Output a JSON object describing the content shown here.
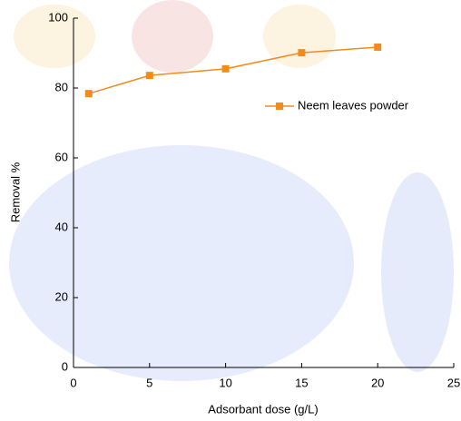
{
  "chart_data": {
    "type": "line",
    "x_label": "Adsorbant dose (g/L)",
    "y_label": "Removal %",
    "series": [
      {
        "name": "Neem leaves powder",
        "color": "#f28b1e",
        "x": [
          1,
          5,
          10,
          15,
          20
        ],
        "values": [
          78.4,
          83.6,
          85.5,
          90.1,
          91.7
        ]
      }
    ],
    "xlim": [
      0,
      25
    ],
    "xticks": [
      0,
      5,
      10,
      15,
      20,
      25
    ],
    "ylim": [
      0,
      100
    ],
    "yticks": [
      0,
      20,
      40,
      60,
      80,
      100
    ],
    "legend": "upper-right",
    "grid": false
  }
}
